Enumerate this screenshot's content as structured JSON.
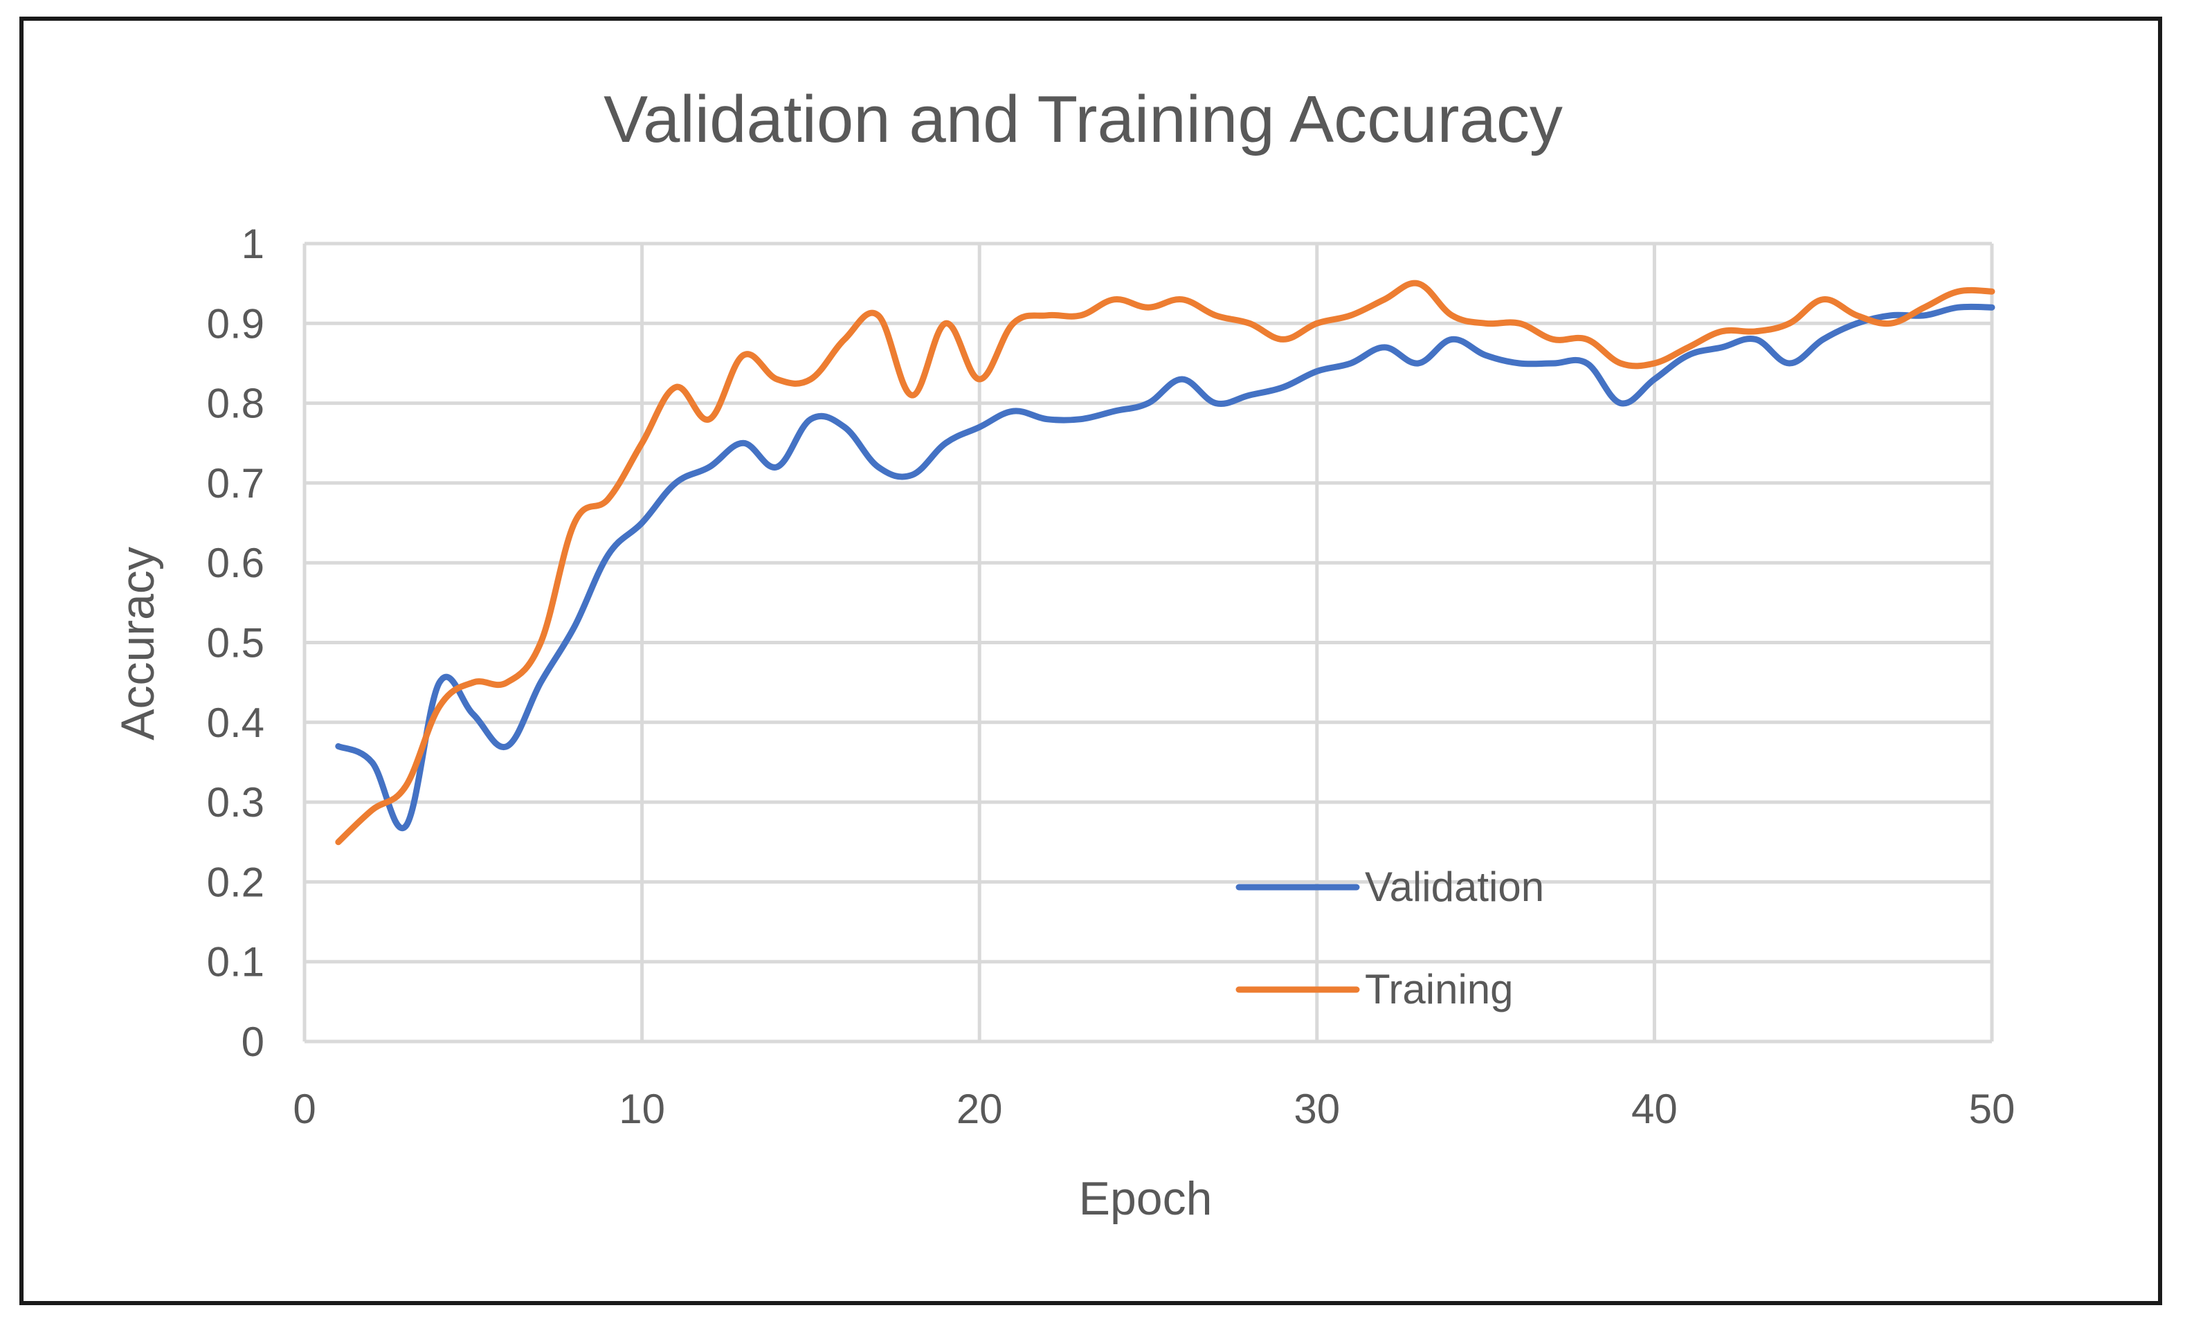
{
  "chart_data": {
    "type": "line",
    "title": "Validation and Training Accuracy",
    "xlabel": "Epoch",
    "ylabel": "Accuracy",
    "xlim": [
      0,
      50
    ],
    "ylim": [
      0,
      1
    ],
    "x_ticks": [
      "0",
      "10",
      "20",
      "30",
      "40",
      "50"
    ],
    "y_ticks": [
      "0",
      "0.1",
      "0.2",
      "0.3",
      "0.4",
      "0.5",
      "0.6",
      "0.7",
      "0.8",
      "0.9",
      "1"
    ],
    "grid": true,
    "legend_position": "bottom-right inside plot",
    "x": [
      1,
      2,
      3,
      4,
      5,
      6,
      7,
      8,
      9,
      10,
      11,
      12,
      13,
      14,
      15,
      16,
      17,
      18,
      19,
      20,
      21,
      22,
      23,
      24,
      25,
      26,
      27,
      28,
      29,
      30,
      31,
      32,
      33,
      34,
      35,
      36,
      37,
      38,
      39,
      40,
      41,
      42,
      43,
      44,
      45,
      46,
      47,
      48,
      49,
      50
    ],
    "series": [
      {
        "name": "Validation",
        "color": "#4472c4",
        "values": [
          0.37,
          0.35,
          0.27,
          0.45,
          0.41,
          0.37,
          0.45,
          0.52,
          0.61,
          0.65,
          0.7,
          0.72,
          0.75,
          0.72,
          0.78,
          0.77,
          0.72,
          0.71,
          0.75,
          0.77,
          0.79,
          0.78,
          0.78,
          0.79,
          0.8,
          0.83,
          0.8,
          0.81,
          0.82,
          0.84,
          0.85,
          0.87,
          0.85,
          0.88,
          0.86,
          0.85,
          0.85,
          0.85,
          0.8,
          0.83,
          0.86,
          0.87,
          0.88,
          0.85,
          0.88,
          0.9,
          0.91,
          0.91,
          0.92,
          0.92
        ]
      },
      {
        "name": "Training",
        "color": "#ed7d31",
        "values": [
          0.25,
          0.29,
          0.32,
          0.42,
          0.45,
          0.45,
          0.5,
          0.65,
          0.68,
          0.75,
          0.82,
          0.78,
          0.86,
          0.83,
          0.83,
          0.88,
          0.91,
          0.81,
          0.9,
          0.83,
          0.9,
          0.91,
          0.91,
          0.93,
          0.92,
          0.93,
          0.91,
          0.9,
          0.88,
          0.9,
          0.91,
          0.93,
          0.95,
          0.91,
          0.9,
          0.9,
          0.88,
          0.88,
          0.85,
          0.85,
          0.87,
          0.89,
          0.89,
          0.9,
          0.93,
          0.91,
          0.9,
          0.92,
          0.94,
          0.94
        ]
      }
    ]
  }
}
